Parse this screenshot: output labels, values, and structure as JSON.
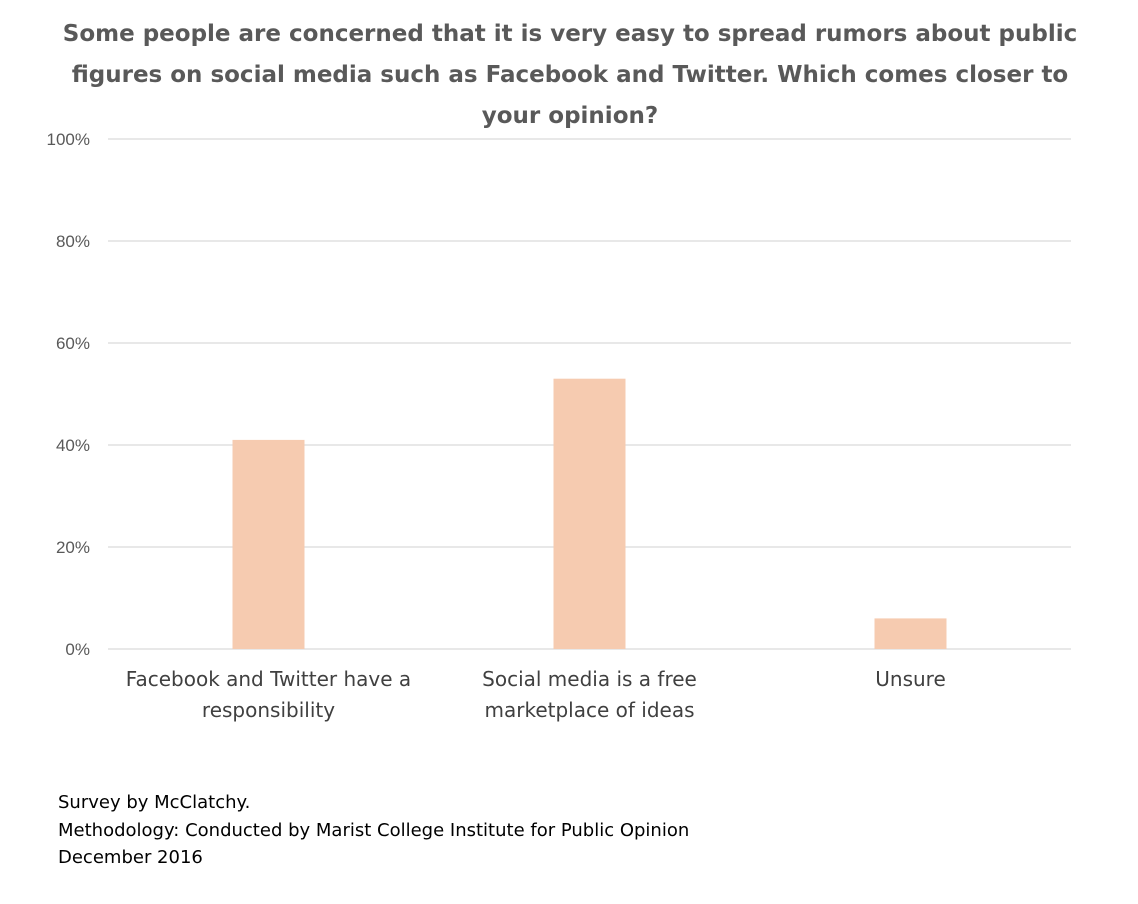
{
  "chart_data": {
    "type": "bar",
    "title": "Some people are concerned that it is very easy to spread rumors about public figures on social media such as Facebook and Twitter. Which comes closer to your opinion?",
    "categories": [
      "Facebook and Twitter have a responsibility",
      "Social media is a free marketplace of ideas",
      "Unsure"
    ],
    "category_lines": [
      [
        "Facebook and Twitter have a",
        "responsibility"
      ],
      [
        "Social media is a free",
        "marketplace of ideas"
      ],
      [
        "Unsure"
      ]
    ],
    "values": [
      41,
      53,
      6
    ],
    "ylim": [
      0,
      100
    ],
    "yticks": [
      0,
      20,
      40,
      60,
      80,
      100
    ],
    "ytick_labels": [
      "0%",
      "20%",
      "40%",
      "60%",
      "80%",
      "100%"
    ],
    "xlabel": "",
    "ylabel": "",
    "grid": true,
    "bar_color": "#F6CBB0",
    "grid_color": "#D9D9D9"
  },
  "footnotes": {
    "source": "Survey by McClatchy.",
    "methodology": "Methodology: Conducted by Marist College Institute for Public Opinion",
    "date": "December 2016"
  }
}
